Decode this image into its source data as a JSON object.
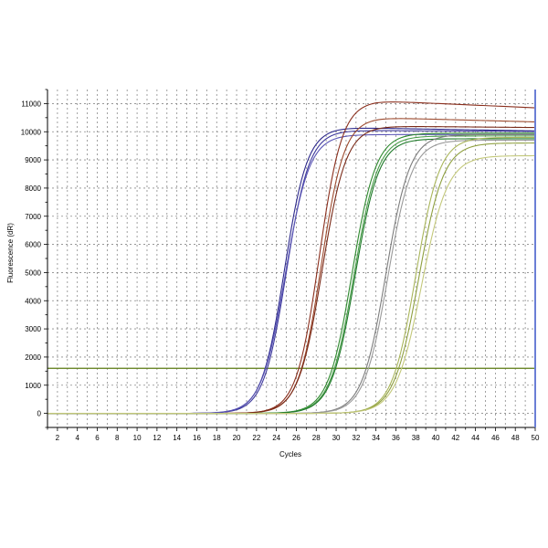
{
  "chart_data": {
    "type": "line",
    "xlabel": "Cycles",
    "ylabel": "Fluorescence (dR)",
    "xlim": [
      1,
      50
    ],
    "ylim": [
      -500,
      11500
    ],
    "x_ticks": [
      2,
      4,
      6,
      8,
      10,
      12,
      14,
      16,
      18,
      20,
      22,
      24,
      26,
      28,
      30,
      32,
      34,
      36,
      38,
      40,
      42,
      44,
      46,
      48,
      50
    ],
    "y_ticks": [
      0,
      1000,
      2000,
      3000,
      4000,
      5000,
      6000,
      7000,
      8000,
      9000,
      10000,
      11000
    ],
    "grid": true,
    "threshold": 1600,
    "series": [
      {
        "color": "#2e2a8c",
        "ct": 24.8,
        "plateau": 10150,
        "slope": 1.15,
        "peak_cycle": 30,
        "drift": -120
      },
      {
        "color": "#3f3a9c",
        "ct": 25.0,
        "plateau": 10050,
        "slope": 1.15,
        "peak_cycle": 30,
        "drift": -40
      },
      {
        "color": "#5a55b5",
        "ct": 24.9,
        "plateau": 9900,
        "slope": 1.2,
        "peak_cycle": 30,
        "drift": 0
      },
      {
        "color": "#8a2e1c",
        "ct": 28.3,
        "plateau": 11100,
        "slope": 1.15,
        "peak_cycle": 34,
        "drift": -250
      },
      {
        "color": "#9c4a2e",
        "ct": 28.5,
        "plateau": 10500,
        "slope": 1.15,
        "peak_cycle": 34,
        "drift": -150
      },
      {
        "color": "#7a2a18",
        "ct": 28.6,
        "plateau": 10200,
        "slope": 1.2,
        "peak_cycle": 34,
        "drift": -50
      },
      {
        "color": "#2f8a2f",
        "ct": 31.6,
        "plateau": 9950,
        "slope": 1.2,
        "peak_cycle": 38,
        "drift": 0
      },
      {
        "color": "#4a9e4a",
        "ct": 31.8,
        "plateau": 9850,
        "slope": 1.2,
        "peak_cycle": 38,
        "drift": 0
      },
      {
        "color": "#1f7a2a",
        "ct": 31.9,
        "plateau": 9750,
        "slope": 1.2,
        "peak_cycle": 38,
        "drift": 0
      },
      {
        "color": "#7d7d7d",
        "ct": 35.0,
        "plateau": 9900,
        "slope": 1.2,
        "peak_cycle": 42,
        "drift": 0
      },
      {
        "color": "#9a9a9a",
        "ct": 35.2,
        "plateau": 9700,
        "slope": 1.2,
        "peak_cycle": 42,
        "drift": 0
      },
      {
        "color": "#a9b55a",
        "ct": 38.0,
        "plateau": 9800,
        "slope": 1.2,
        "peak_cycle": 45,
        "drift": 0
      },
      {
        "color": "#8fa040",
        "ct": 38.3,
        "plateau": 9600,
        "slope": 1.25,
        "peak_cycle": 45,
        "drift": 0
      },
      {
        "color": "#c3c87a",
        "ct": 38.6,
        "plateau": 9150,
        "slope": 1.3,
        "peak_cycle": 45,
        "drift": 0
      }
    ],
    "colors": {
      "grid": "#8a8a8a",
      "axis": "#000000",
      "threshold": "#5a7a10",
      "end_marker": "#6b7fd6"
    }
  }
}
